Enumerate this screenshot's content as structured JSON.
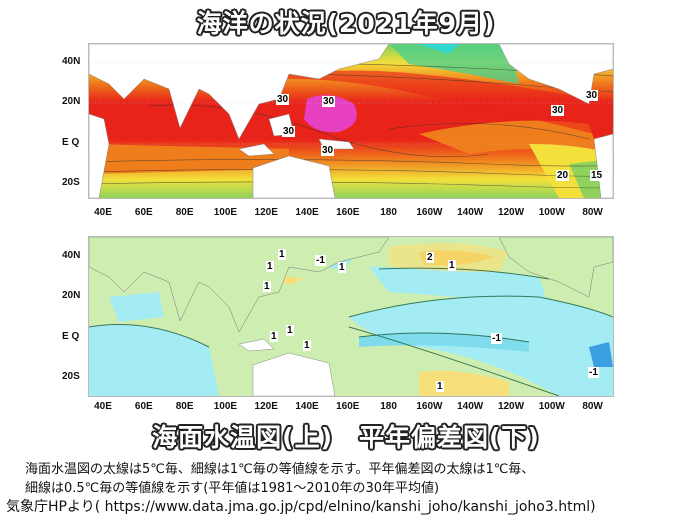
{
  "title": "海洋の状況(2021年9月)",
  "subtitle": "海面水温図(上)　平年偏差図(下)",
  "lat_labels": [
    "40N",
    "20N",
    "E Q",
    "20S"
  ],
  "lon_labels": [
    "40E",
    "60E",
    "80E",
    "100E",
    "120E",
    "140E",
    "160E",
    "180",
    "160W",
    "140W",
    "120W",
    "100W",
    "80W"
  ],
  "sst_map": {
    "contour_labels": [
      "30",
      "30",
      "30",
      "30",
      "30",
      "30",
      "20",
      "15"
    ],
    "colors": {
      "warmest": "#e63fbf",
      "red": "#e8231a",
      "orange": "#f07d1c",
      "yellow": "#f3e03a",
      "green": "#7fd05a",
      "cyan": "#30d8d0"
    }
  },
  "anomaly_map": {
    "contour_labels": [
      "1",
      "1",
      "-1",
      "1",
      "2",
      "1",
      "1",
      "1",
      "1",
      "1",
      "-1",
      "-1",
      "1"
    ],
    "colors": {
      "light_green": "#cdeeb0",
      "cyan": "#a4ecf3",
      "yellow": "#f7e07c",
      "orange": "#f2b52d",
      "blue": "#3aa0e0"
    }
  },
  "caption": {
    "line1": "海面水温図の太線は5℃毎、細線は1℃毎の等値線を示す。平年偏差図の太線は1℃毎、",
    "line2": "細線は0.5℃毎の等値線を示す(平年値は1981～2010年の30年平均値)",
    "source": "気象庁HPより( https://www.data.jma.go.jp/cpd/elnino/kanshi_joho/kanshi_joho3.html)"
  }
}
